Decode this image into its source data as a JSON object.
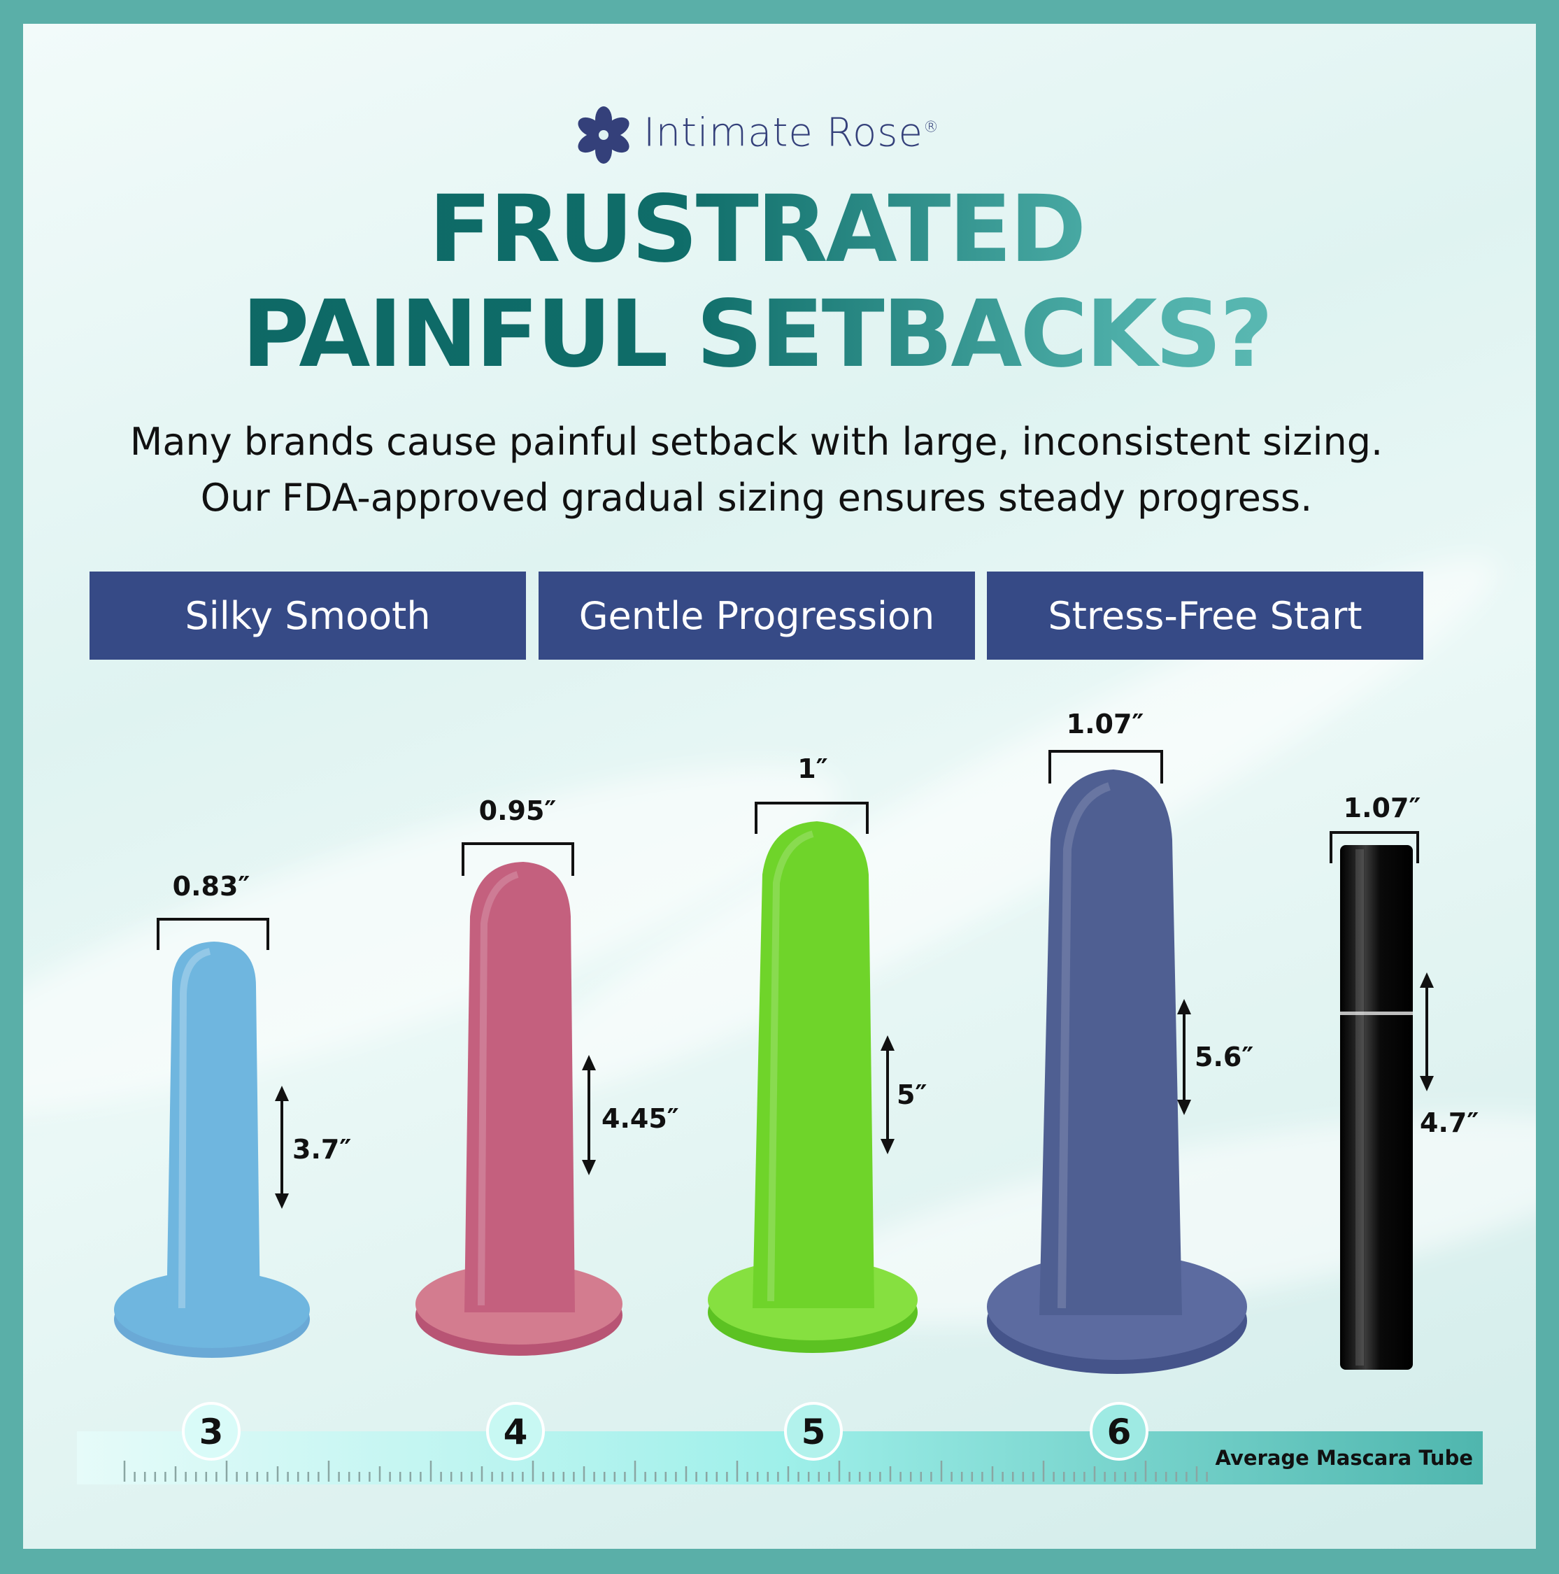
{
  "brand": {
    "name": "Intimate Rose",
    "mark": "®"
  },
  "headline": {
    "line1": "FRUSTRATED",
    "line2": "PAINFUL SETBACKS?"
  },
  "subtext": {
    "line1": "Many brands cause painful setback with large, inconsistent sizing.",
    "line2": "Our FDA-approved gradual sizing ensures steady progress."
  },
  "badges": [
    "Silky Smooth",
    "Gentle Progression",
    "Stress-Free Start"
  ],
  "products": [
    {
      "size": "3",
      "width": "0.83″",
      "length": "3.7″",
      "color": "#6fb6df"
    },
    {
      "size": "4",
      "width": "0.95″",
      "length": "4.45″",
      "color": "#c4607e"
    },
    {
      "size": "5",
      "width": "1″",
      "length": "5″",
      "color": "#6fd42a"
    },
    {
      "size": "6",
      "width": "1.07″",
      "length": "5.6″",
      "color": "#4f5f92"
    }
  ],
  "mascara": {
    "width": "1.07″",
    "length": "4.7″",
    "label": "Average Mascara Tube",
    "color": "#151515"
  },
  "colors": {
    "frame": "#5aafa8",
    "badge": "#364a86",
    "headline": "#0f6d69"
  }
}
